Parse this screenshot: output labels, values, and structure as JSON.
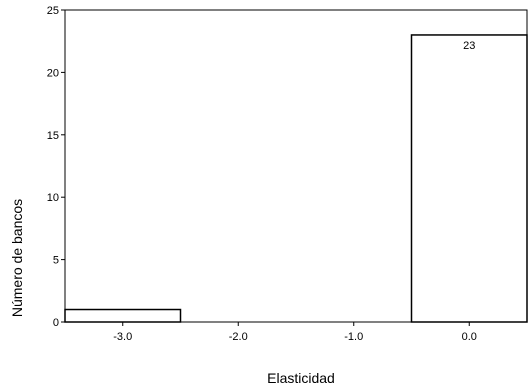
{
  "chart_data": {
    "type": "bar",
    "title": "",
    "xlabel": "Elasticidad",
    "ylabel": "Número de bancos",
    "ylim": [
      0,
      25
    ],
    "xlim": [
      -3.5,
      0.5
    ],
    "y_ticks": [
      "0",
      "5",
      "10",
      "15",
      "20",
      "25"
    ],
    "x_ticks": [
      {
        "value": -3.0,
        "label": "-3.0"
      },
      {
        "value": -2.0,
        "label": "-2.0"
      },
      {
        "value": -1.0,
        "label": "-1.0"
      },
      {
        "value": 0.0,
        "label": "0.0"
      }
    ],
    "bin_width": 1.0,
    "bars": [
      {
        "center": -3.0,
        "value": 1,
        "label": ""
      },
      {
        "center": 0.0,
        "value": 23,
        "label": "23"
      }
    ],
    "grid": false,
    "legend": "none"
  }
}
